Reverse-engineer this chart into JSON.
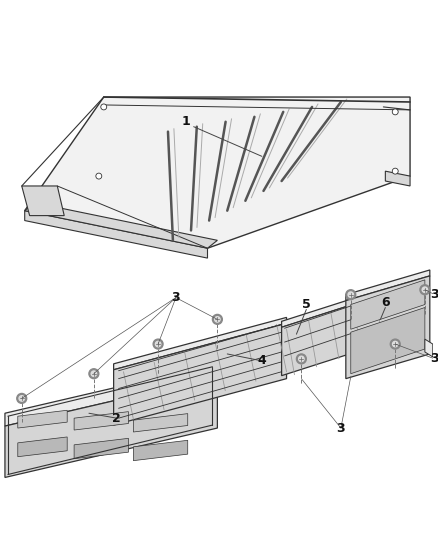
{
  "bg_color": "#ffffff",
  "lc": "#555555",
  "lc_dark": "#333333",
  "lc_light": "#aaaaaa",
  "roof_top": "#f2f2f2",
  "roof_side": "#d8d8d8",
  "roof_front": "#e0e0e0",
  "panel_top": "#ebebeb",
  "panel_front": "#d5d5d5",
  "panel_detail": "#c8c8c8",
  "screw_outer": "#888888",
  "screw_inner": "#dddddd"
}
